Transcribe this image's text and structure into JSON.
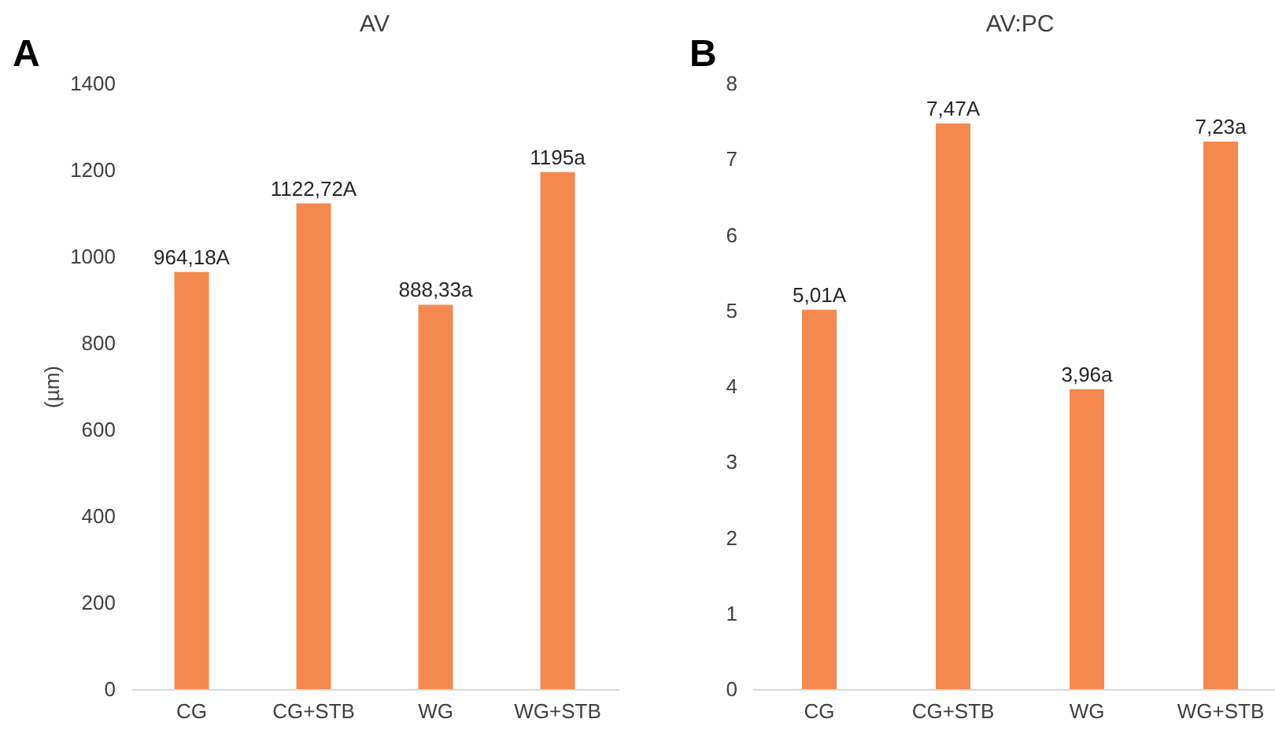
{
  "chart_data": [
    {
      "type": "bar",
      "title": "AV",
      "ylabel": "(µm)",
      "annotations": [
        "A"
      ],
      "categories": [
        "CG",
        "CG+STB",
        "WG",
        "WG+STB"
      ],
      "values": [
        964.18,
        1122.72,
        888.33,
        1195
      ],
      "value_labels": [
        "964,18A",
        "1122,72A",
        "888,33a",
        "1195a"
      ],
      "color": "#f4894f",
      "ylim": [
        0,
        1400
      ],
      "yticks": [
        0,
        200,
        400,
        600,
        800,
        1000,
        1200,
        1400
      ],
      "grid": false
    },
    {
      "type": "bar",
      "title": "AV:PC",
      "annotations": [
        "B"
      ],
      "categories": [
        "CG",
        "CG+STB",
        "WG",
        "WG+STB"
      ],
      "values": [
        5.01,
        7.47,
        3.96,
        7.23
      ],
      "value_labels": [
        "5,01A",
        "7,47A",
        "3,96a",
        "7,23a"
      ],
      "color": "#f4894f",
      "ylim": [
        0,
        8
      ],
      "yticks": [
        0,
        1,
        2,
        3,
        4,
        5,
        6,
        7,
        8
      ],
      "grid": false
    }
  ]
}
